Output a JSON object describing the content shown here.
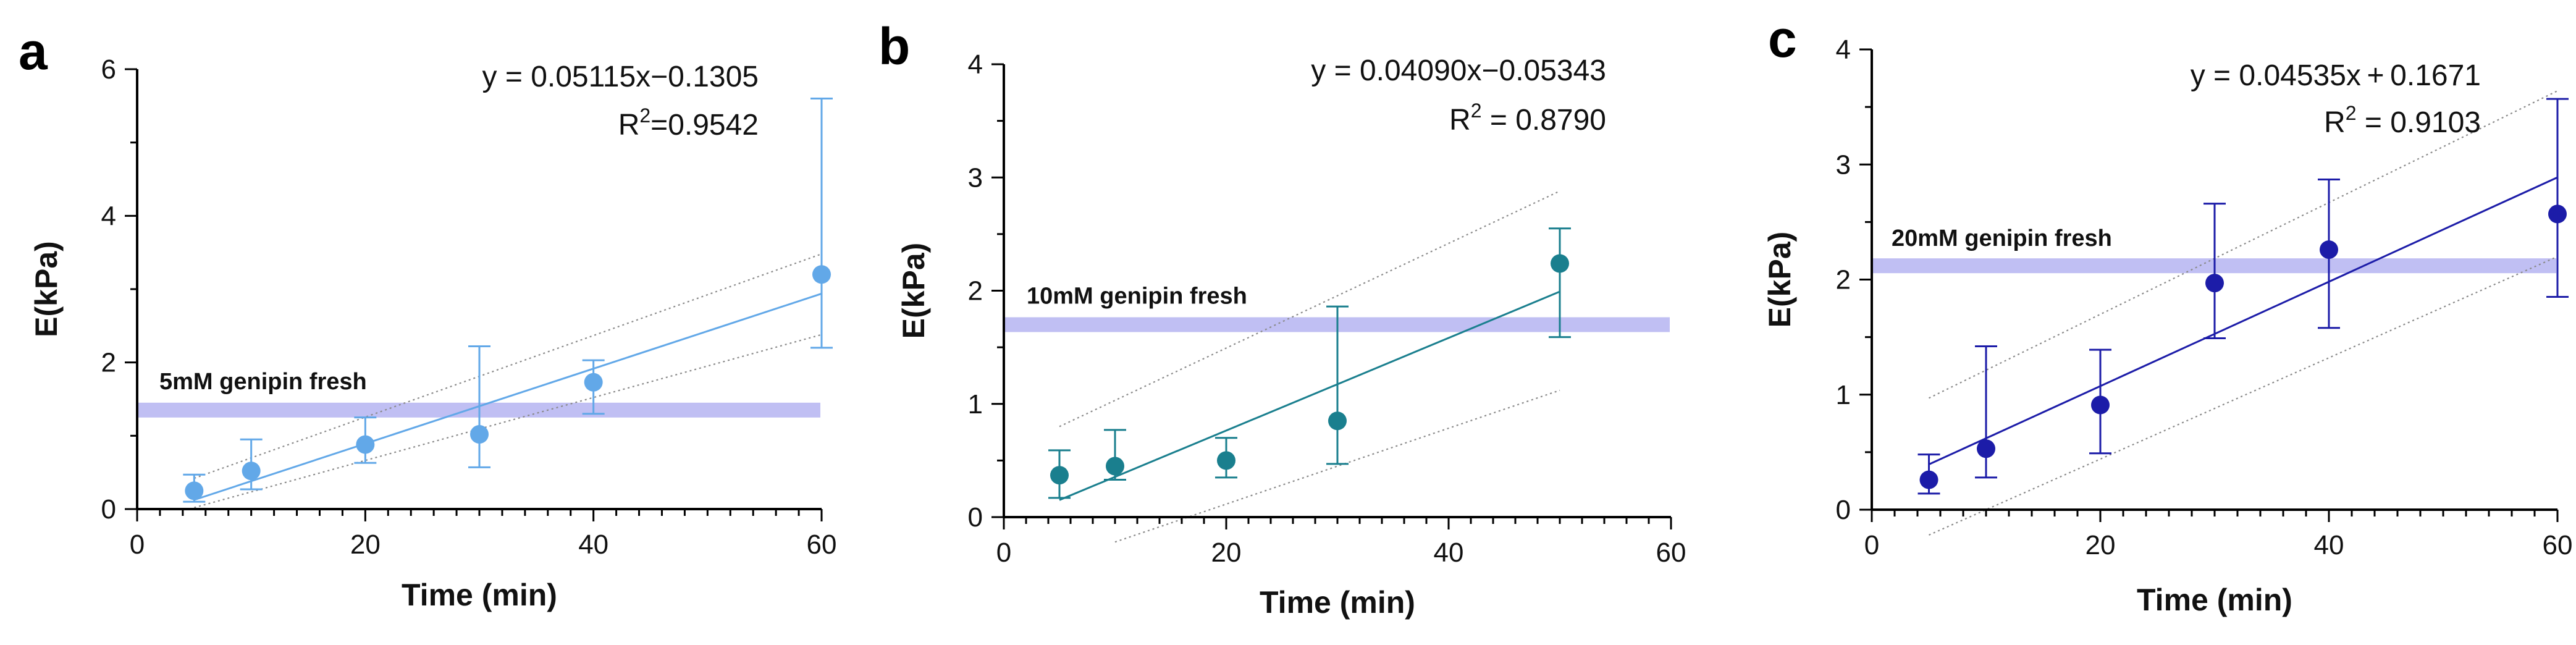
{
  "chart_data": [
    {
      "type": "scatter",
      "panel_label": "a",
      "color": "#62a8e8",
      "band_color": "#b9b8f2",
      "x": [
        5,
        10,
        20,
        30,
        40,
        60
      ],
      "y": [
        0.25,
        0.52,
        0.88,
        1.02,
        1.73,
        3.2
      ],
      "y_err_low": [
        0.15,
        0.25,
        0.25,
        0.45,
        0.43,
        1.0
      ],
      "y_err_high": [
        0.22,
        0.43,
        0.37,
        1.2,
        0.3,
        2.4
      ],
      "fit": {
        "slope": 0.05115,
        "intercept": -0.1305,
        "x_range": [
          5,
          60
        ]
      },
      "ci": {
        "lower": [
          [
            5,
            0.02
          ],
          [
            60,
            2.38
          ]
        ],
        "upper": [
          [
            5,
            0.42
          ],
          [
            60,
            3.48
          ]
        ]
      },
      "equation": "y = 0.05115x−0.1305",
      "r2_label": "R",
      "r2_exp": "2",
      "r2_value": "=0.9542",
      "reference": {
        "value": 1.35,
        "label": "5mM genipin fresh"
      },
      "xlabel": "Time (min)",
      "ylabel": "E(kPa)",
      "xlim": [
        0,
        60
      ],
      "ylim": [
        0,
        6
      ],
      "x_ticks": [
        0,
        20,
        40,
        60
      ],
      "x_tick_labels": [
        "0",
        "20",
        "40",
        "60"
      ],
      "y_ticks": [
        0,
        2,
        4,
        6
      ],
      "y_tick_labels": [
        "0",
        "2",
        "4",
        "6"
      ]
    },
    {
      "type": "scatter",
      "panel_label": "b",
      "color": "#1a7f8e",
      "band_color": "#b9b8f2",
      "x": [
        5,
        10,
        20,
        30,
        50
      ],
      "y": [
        0.37,
        0.45,
        0.5,
        0.85,
        2.24
      ],
      "y_err_low": [
        0.2,
        0.12,
        0.15,
        0.38,
        0.65
      ],
      "y_err_high": [
        0.22,
        0.32,
        0.2,
        1.01,
        0.31
      ],
      "fit": {
        "slope": 0.0409,
        "intercept": -0.05343,
        "x_range": [
          5,
          50
        ]
      },
      "ci": {
        "lower": [
          [
            10,
            -0.22
          ],
          [
            50,
            1.12
          ]
        ],
        "upper": [
          [
            5,
            0.8
          ],
          [
            50,
            2.88
          ]
        ]
      },
      "equation": "y = 0.04090x−0.05343",
      "r2_label": "R",
      "r2_exp": "2",
      "r2_value": " = 0.8790",
      "reference": {
        "value": 1.7,
        "label": "10mM genipin fresh"
      },
      "xlabel": "Time (min)",
      "ylabel": "E(kPa)",
      "xlim": [
        0,
        60
      ],
      "ylim": [
        0,
        4
      ],
      "x_ticks": [
        0,
        20,
        40,
        60
      ],
      "x_tick_labels": [
        "0",
        "20",
        "40",
        "60"
      ],
      "y_ticks": [
        0,
        1,
        2,
        3,
        4
      ],
      "y_tick_labels": [
        "0",
        "1",
        "2",
        "3",
        "4"
      ]
    },
    {
      "type": "scatter",
      "panel_label": "c",
      "color": "#1c1ca8",
      "band_color": "#b9b8f2",
      "x": [
        5,
        10,
        20,
        30,
        40,
        60
      ],
      "y": [
        0.26,
        0.53,
        0.91,
        1.97,
        2.26,
        2.57
      ],
      "y_err_low": [
        0.12,
        0.25,
        0.42,
        0.48,
        0.68,
        0.72
      ],
      "y_err_high": [
        0.22,
        0.89,
        0.48,
        0.69,
        0.61,
        1.0
      ],
      "fit": {
        "slope": 0.04535,
        "intercept": 0.1671,
        "x_range": [
          5,
          60
        ]
      },
      "ci": {
        "lower": [
          [
            5,
            -0.22
          ],
          [
            60,
            2.2
          ]
        ],
        "upper": [
          [
            5,
            0.97
          ],
          [
            60,
            3.64
          ]
        ]
      },
      "equation": "y = 0.04535x + 0.1671",
      "r2_label": "R",
      "r2_exp": "2",
      "r2_value": " = 0.9103",
      "reference": {
        "value": 2.12,
        "label": "20mM genipin fresh"
      },
      "xlabel": "Time (min)",
      "ylabel": "E(kPa)",
      "xlim": [
        0,
        60
      ],
      "ylim": [
        0,
        4
      ],
      "x_ticks": [
        0,
        20,
        40,
        60
      ],
      "x_tick_labels": [
        "0",
        "20",
        "40",
        "60"
      ],
      "y_ticks": [
        0,
        1,
        2,
        3,
        4
      ],
      "y_tick_labels": [
        "0",
        "1",
        "2",
        "3",
        "4"
      ]
    }
  ]
}
